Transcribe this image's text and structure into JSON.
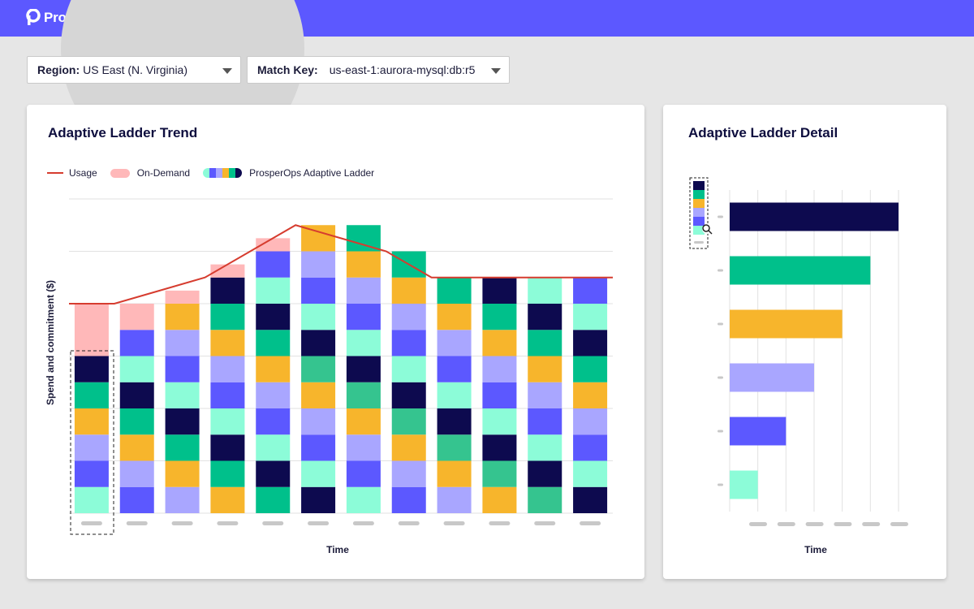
{
  "brand": {
    "name": "ProsperOps"
  },
  "filters": {
    "region": {
      "label": "Region:",
      "value": "US East (N. Virginia)"
    },
    "match_key": {
      "label": "Match Key:",
      "value": "us-east-1:aurora-mysql:db:r5"
    }
  },
  "colors": {
    "header": "#5c58ff",
    "usage": "#d63c2f",
    "on_demand": "#ffb8b9",
    "navy": "#0d0a4f",
    "green": "#00c08b",
    "dark_green": "#35c48f",
    "yellow": "#f7b52c",
    "lavender": "#a9a6ff",
    "blue": "#5c58ff",
    "mint": "#8cfcd8"
  },
  "trend": {
    "title": "Adaptive Ladder Trend",
    "legend": {
      "usage": "Usage",
      "on_demand": "On-Demand",
      "ladder": "ProsperOps Adaptive Ladder"
    },
    "ylabel": "Spend and commitment ($)",
    "xlabel": "Time"
  },
  "detail": {
    "title": "Adaptive Ladder Detail",
    "xlabel": "Time"
  },
  "chart_data": [
    {
      "type": "bar",
      "subtype": "stacked-bar-with-line",
      "title": "Adaptive Ladder Trend",
      "xlabel": "Time",
      "ylabel": "Spend and commitment ($)",
      "categories": [
        "",
        "",
        "",
        "",
        "",
        "",
        "",
        "",
        "",
        "",
        "",
        ""
      ],
      "stacks": [
        [
          "mint",
          "blue",
          "lavender",
          "yellow",
          "green",
          "navy"
        ],
        [
          "blue",
          "lavender",
          "yellow",
          "green",
          "navy",
          "mint",
          "blue"
        ],
        [
          "lavender",
          "yellow",
          "green",
          "navy",
          "mint",
          "blue",
          "lavender",
          "yellow"
        ],
        [
          "yellow",
          "green",
          "navy",
          "mint",
          "blue",
          "lavender",
          "yellow",
          "green",
          "navy"
        ],
        [
          "green",
          "navy",
          "mint",
          "blue",
          "lavender",
          "yellow",
          "green",
          "navy",
          "mint",
          "blue"
        ],
        [
          "navy",
          "mint",
          "blue",
          "lavender",
          "yellow",
          "dark_green",
          "navy",
          "mint",
          "blue",
          "lavender",
          "yellow"
        ],
        [
          "mint",
          "blue",
          "lavender",
          "yellow",
          "dark_green",
          "navy",
          "mint",
          "blue",
          "lavender",
          "yellow",
          "green"
        ],
        [
          "blue",
          "lavender",
          "yellow",
          "dark_green",
          "navy",
          "mint",
          "blue",
          "lavender",
          "yellow",
          "green"
        ],
        [
          "lavender",
          "yellow",
          "dark_green",
          "navy",
          "mint",
          "blue",
          "lavender",
          "yellow",
          "green"
        ],
        [
          "yellow",
          "dark_green",
          "navy",
          "mint",
          "blue",
          "lavender",
          "yellow",
          "green",
          "navy"
        ],
        [
          "dark_green",
          "navy",
          "mint",
          "blue",
          "lavender",
          "yellow",
          "green",
          "navy",
          "mint"
        ],
        [
          "navy",
          "mint",
          "blue",
          "lavender",
          "yellow",
          "green",
          "navy",
          "mint",
          "blue"
        ]
      ],
      "usage": [
        8,
        8,
        8.5,
        9,
        10,
        11,
        10.5,
        10,
        9,
        9,
        9,
        9
      ],
      "on_demand": [
        2,
        1,
        0.5,
        0.5,
        0.5,
        0,
        0,
        0,
        0,
        0,
        0,
        0
      ],
      "ylim": [
        0,
        12
      ],
      "grid": true,
      "legend": "top-left"
    },
    {
      "type": "bar",
      "subtype": "horizontal-bar",
      "title": "Adaptive Ladder Detail",
      "xlabel": "Time",
      "series_colors": [
        "navy",
        "green",
        "yellow",
        "lavender",
        "blue",
        "mint"
      ],
      "values": [
        6,
        5,
        4,
        3,
        2,
        1
      ],
      "xlim": [
        0,
        6
      ],
      "grid": true
    }
  ]
}
